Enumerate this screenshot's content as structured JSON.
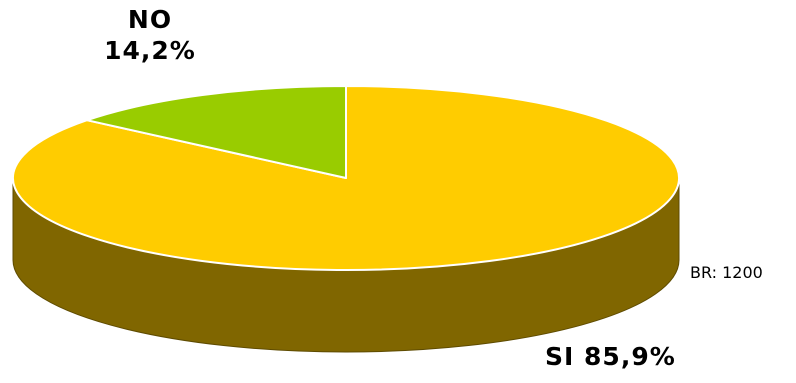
{
  "chart_data": {
    "type": "pie",
    "style": "3d",
    "slices": [
      {
        "name": "NO",
        "value_text": "14,2%",
        "value": 14.2,
        "color": "#99cc00"
      },
      {
        "name": "SI",
        "value_text": "85,9%",
        "value": 85.9,
        "color": "#ffcc00",
        "side_color": "#806600"
      }
    ],
    "note": "BR: 1200",
    "legend": "none"
  }
}
